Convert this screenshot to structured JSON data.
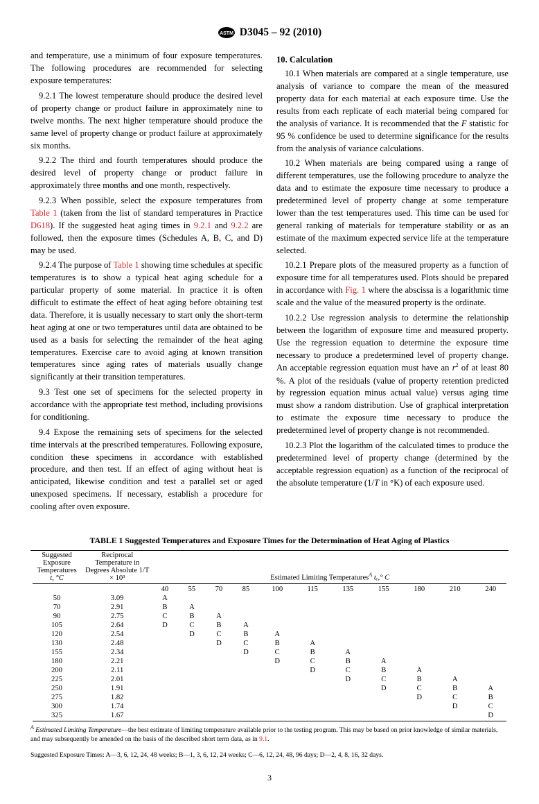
{
  "header": "D3045 – 92 (2010)",
  "left_col": {
    "p1": "and temperature, use a minimum of four exposure temperatures. The following procedures are recommended for selecting exposure temperatures:",
    "p2_pre": "9.2.1 The lowest temperature should produce the desired level of property change or product failure in approximately nine to twelve months. The next higher temperature should produce the same level of property change or product failure at approximately six months.",
    "p3": "9.2.2 The third and fourth temperatures should produce the desired level of property change or product failure in approximately three months and one month, respectively.",
    "p4a": "9.2.3 When possible, select the exposure temperatures from ",
    "p4_t1": "Table 1",
    "p4b": " (taken from the list of standard temperatures in Practice ",
    "p4_d": "D618",
    "p4c": "). If the suggested heat aging times in ",
    "p4_921": "9.2.1",
    "p4d": " and ",
    "p4_922": "9.2.2",
    "p4e": " are followed, then the exposure times (Schedules A, B, C, and D) may be used.",
    "p5a": "9.2.4 The purpose of ",
    "p5_t1": "Table 1",
    "p5b": " showing time schedules at specific temperatures is to show a typical heat aging schedule for a particular property of some material. In practice it is often difficult to estimate the effect of heat aging before obtaining test data. Therefore, it is usually necessary to start only the short-term heat aging at one or two temperatures until data are obtained to be used as a basis for selecting the remainder of the heat aging temperatures. Exercise care to avoid aging at known transition temperatures since aging rates of materials usually change significantly at their transition temperatures.",
    "p6": "9.3 Test one set of specimens for the selected property in accordance with the appropriate test method, including provisions for conditioning.",
    "p7": "9.4 Expose the remaining sets of specimens for the selected time intervals at the prescribed temperatures. Following exposure, condition these specimens in accordance with established procedure, and then test. If an effect of aging without heat is anticipated, likewise condition and test a parallel set or aged unexposed specimens. If necessary, establish a procedure for cooling after oven exposure."
  },
  "right_col": {
    "h10": "10. Calculation",
    "p10_1a": "10.1 When materials are compared at a single temperature, use analysis of variance to compare the mean of the measured property data for each material at each exposure time. Use the results from each replicate of each material being compared for the analysis of variance. It is recommended that the ",
    "p10_1F": "F",
    "p10_1b": " statistic for 95 % confidence be used to determine significance for the results from the analysis of variance calculations.",
    "p10_2": "10.2 When materials are being compared using a range of different temperatures, use the following procedure to analyze the data and to estimate the exposure time necessary to produce a predetermined level of property change at some temperature lower than the test temperatures used. This time can be used for general ranking of materials for temperature stability or as an estimate of the maximum expected service life at the temperature selected.",
    "p10_21a": "10.2.1 Prepare plots of the measured property as a function of exposure time for all temperatures used. Plots should be prepared in accordance with ",
    "p10_21fig": "Fig. 1",
    "p10_21b": " where the abscissa is a logarithmic time scale and the value of the measured property is the ordinate.",
    "p10_22a": "10.2.2 Use regression analysis to determine the relationship between the logarithm of exposure time and measured property. Use the regression equation to determine the exposure time necessary to produce a predetermined level of property change. An acceptable regression equation must have an ",
    "p10_22r": "r",
    "p10_22b": " of at least 80 %. A plot of the residuals (value of property retention predicted by regression equation minus actual value) versus aging time must show a random distribution. Use of graphical interpretation to estimate the exposure time necessary to produce the predetermined level of property change is not recommended.",
    "p10_23a": "10.2.3 Plot the logarithm of the calculated times to produce the predetermined level of property change (determined by the acceptable regression equation) as a function of the reciprocal of the absolute temperature (1/",
    "p10_23T": "T",
    "p10_23b": " in °K) of each exposure used."
  },
  "table": {
    "title": "TABLE 1 Suggested Temperatures and Exposure Times for the Determination of Heat Aging of Plastics",
    "head_col1_l1": "Suggested",
    "head_col1_l2": "Exposure",
    "head_col1_l3": "Temperatures",
    "head_col1_l4": "t, °C",
    "head_col2_l1": "Reciprocal",
    "head_col2_l2": "Temperature in",
    "head_col2_l3": "Degrees Absolute 1/T",
    "head_col2_l4": "× 10³",
    "head_est_pre": "Estimated Limiting Temperatures",
    "head_est_sup": "A",
    "head_est_post": " tₑ,° C",
    "temp_cols": [
      "40",
      "55",
      "70",
      "85",
      "100",
      "115",
      "135",
      "155",
      "180",
      "210",
      "240"
    ],
    "rows": [
      {
        "t": "50",
        "r": "3.09",
        "v": [
          "A",
          "",
          "",
          "",
          "",
          "",
          "",
          "",
          "",
          "",
          ""
        ]
      },
      {
        "t": "70",
        "r": "2.91",
        "v": [
          "B",
          "A",
          "",
          "",
          "",
          "",
          "",
          "",
          "",
          "",
          ""
        ]
      },
      {
        "t": "90",
        "r": "2.75",
        "v": [
          "C",
          "B",
          "A",
          "",
          "",
          "",
          "",
          "",
          "",
          "",
          ""
        ]
      },
      {
        "t": "105",
        "r": "2.64",
        "v": [
          "D",
          "C",
          "B",
          "A",
          "",
          "",
          "",
          "",
          "",
          "",
          ""
        ]
      },
      {
        "t": "120",
        "r": "2.54",
        "v": [
          "",
          "D",
          "C",
          "B",
          "A",
          "",
          "",
          "",
          "",
          "",
          ""
        ]
      },
      {
        "t": "130",
        "r": "2.48",
        "v": [
          "",
          "",
          "D",
          "C",
          "B",
          "A",
          "",
          "",
          "",
          "",
          ""
        ]
      },
      {
        "t": "155",
        "r": "2.34",
        "v": [
          "",
          "",
          "",
          "D",
          "C",
          "B",
          "A",
          "",
          "",
          "",
          ""
        ]
      },
      {
        "t": "180",
        "r": "2.21",
        "v": [
          "",
          "",
          "",
          "",
          "D",
          "C",
          "B",
          "A",
          "",
          "",
          ""
        ]
      },
      {
        "t": "200",
        "r": "2.11",
        "v": [
          "",
          "",
          "",
          "",
          "",
          "D",
          "C",
          "B",
          "A",
          "",
          ""
        ]
      },
      {
        "t": "225",
        "r": "2.01",
        "v": [
          "",
          "",
          "",
          "",
          "",
          "",
          "D",
          "C",
          "B",
          "A",
          ""
        ]
      },
      {
        "t": "250",
        "r": "1.91",
        "v": [
          "",
          "",
          "",
          "",
          "",
          "",
          "",
          "D",
          "C",
          "B",
          "A"
        ]
      },
      {
        "t": "275",
        "r": "1.82",
        "v": [
          "",
          "",
          "",
          "",
          "",
          "",
          "",
          "",
          "D",
          "C",
          "B"
        ]
      },
      {
        "t": "300",
        "r": "1.74",
        "v": [
          "",
          "",
          "",
          "",
          "",
          "",
          "",
          "",
          "",
          "D",
          "C"
        ]
      },
      {
        "t": "325",
        "r": "1.67",
        "v": [
          "",
          "",
          "",
          "",
          "",
          "",
          "",
          "",
          "",
          "",
          "D"
        ]
      }
    ],
    "foot_A_sup": "A",
    "foot_A_label": " Estimated Limiting Temperature",
    "foot_A_body": "—the best estimate of limiting temperature available prior to the testing program. This may be based on prior knowledge of similar materials, and may subsequently be amended on the basis of the described short term data, as in ",
    "foot_A_link": "9.1",
    "foot_A_end": ".",
    "foot_times": "Suggested Exposure Times: A—3, 6, 12, 24, 48 weeks; B—1, 3, 6, 12, 24 weeks; C—6, 12, 24, 48, 96 days; D—2, 4, 8, 16, 32 days."
  },
  "page_num": "3"
}
